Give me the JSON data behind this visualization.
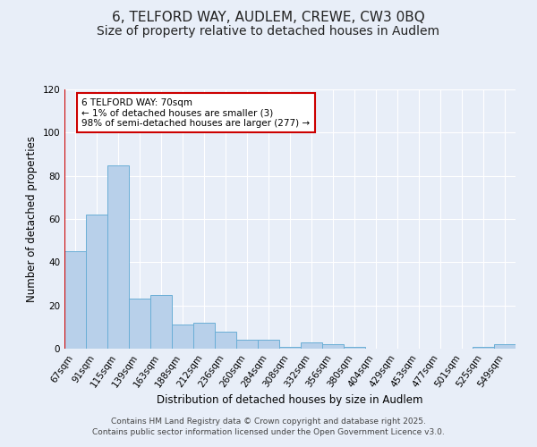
{
  "title_line1": "6, TELFORD WAY, AUDLEM, CREWE, CW3 0BQ",
  "title_line2": "Size of property relative to detached houses in Audlem",
  "xlabel": "Distribution of detached houses by size in Audlem",
  "ylabel": "Number of detached properties",
  "categories": [
    "67sqm",
    "91sqm",
    "115sqm",
    "139sqm",
    "163sqm",
    "188sqm",
    "212sqm",
    "236sqm",
    "260sqm",
    "284sqm",
    "308sqm",
    "332sqm",
    "356sqm",
    "380sqm",
    "404sqm",
    "429sqm",
    "453sqm",
    "477sqm",
    "501sqm",
    "525sqm",
    "549sqm"
  ],
  "values": [
    45,
    62,
    85,
    23,
    25,
    11,
    12,
    8,
    4,
    4,
    1,
    3,
    2,
    1,
    0,
    0,
    0,
    0,
    0,
    1,
    2
  ],
  "bar_color": "#b8d0ea",
  "bar_edge_color": "#6aaed6",
  "ylim": [
    0,
    120
  ],
  "yticks": [
    0,
    20,
    40,
    60,
    80,
    100,
    120
  ],
  "vline_color": "#cc0000",
  "annotation_text": "6 TELFORD WAY: 70sqm\n← 1% of detached houses are smaller (3)\n98% of semi-detached houses are larger (277) →",
  "annotation_box_color": "#ffffff",
  "annotation_box_edge_color": "#cc0000",
  "footer_line1": "Contains HM Land Registry data © Crown copyright and database right 2025.",
  "footer_line2": "Contains public sector information licensed under the Open Government Licence v3.0.",
  "background_color": "#e8eef8",
  "plot_bg_color": "#e8eef8",
  "grid_color": "#ffffff",
  "title_fontsize": 11,
  "subtitle_fontsize": 10,
  "axis_label_fontsize": 8.5,
  "tick_fontsize": 7.5,
  "annotation_fontsize": 7.5,
  "footer_fontsize": 6.5
}
